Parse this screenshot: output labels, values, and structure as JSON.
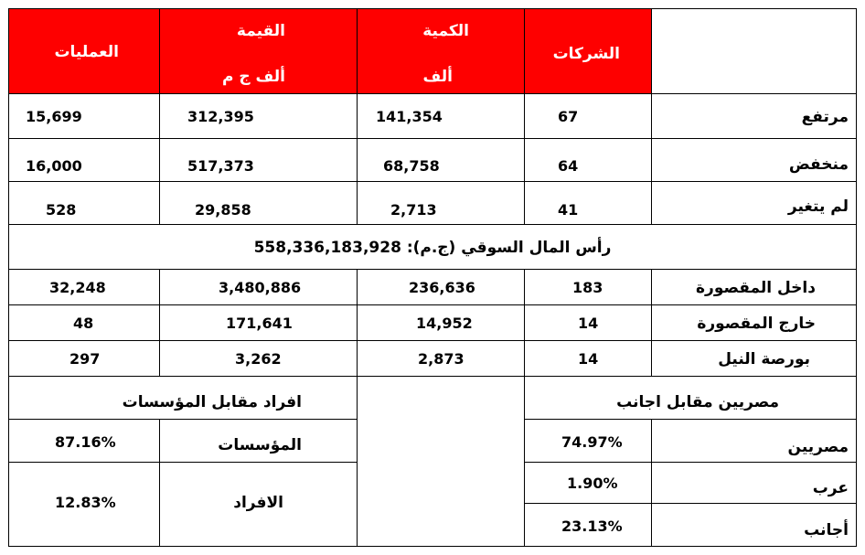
{
  "header": {
    "companies": "الشركات",
    "quantity": "الكمية",
    "quantity_unit": "ألف",
    "value": "القيمة",
    "value_unit": "ألف ج م",
    "transactions": "العمليات"
  },
  "rows": [
    {
      "label": "مرتفع",
      "companies": "67",
      "quantity": "141,354",
      "value": "312,395",
      "transactions": "15,699"
    },
    {
      "label": "منخفض",
      "companies": "64",
      "quantity": "68,758",
      "value": "517,373",
      "transactions": "16,000"
    },
    {
      "label": "لم يتغير",
      "companies": "41",
      "quantity": "2,713",
      "value": "29,858",
      "transactions": "528"
    }
  ],
  "market_cap": "رأس المال السوقي (ج.م): 558,336,183,928",
  "markets": [
    {
      "label": "داخل المقصورة",
      "companies": "183",
      "quantity": "236,636",
      "value": "3,480,886",
      "transactions": "32,248"
    },
    {
      "label": "خارج المقصورة",
      "companies": "14",
      "quantity": "14,952",
      "value": "171,641",
      "transactions": "48"
    },
    {
      "label": "بورصة النيل",
      "companies": "14",
      "quantity": "2,873",
      "value": "3,262",
      "transactions": "297"
    }
  ],
  "nationality": {
    "title": "مصريين مقابل اجانب",
    "rows": [
      {
        "label": "مصريين",
        "value": "74.97%"
      },
      {
        "label": "عرب",
        "value": "1.90%"
      },
      {
        "label": "أجانب",
        "value": "23.13%"
      }
    ]
  },
  "investors": {
    "title": "افراد مقابل المؤسسات",
    "rows": [
      {
        "label": "المؤسسات",
        "value": "87.16%"
      },
      {
        "label": "الافراد",
        "value": "12.83%"
      }
    ]
  },
  "colors": {
    "header_red": "#fe0000",
    "header_text": "#ffffff",
    "border": "#000000"
  }
}
